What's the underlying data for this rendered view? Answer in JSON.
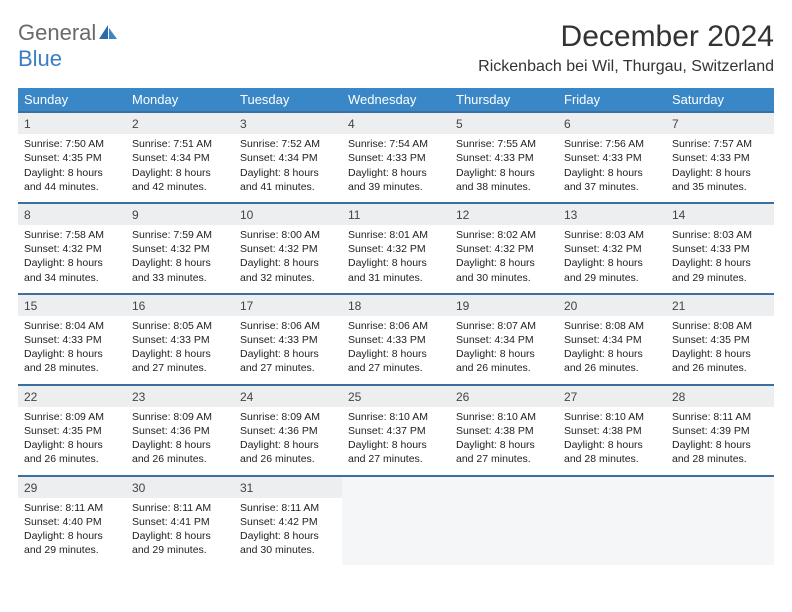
{
  "logo": {
    "text1": "General",
    "text2": "Blue"
  },
  "title": "December 2024",
  "location": "Rickenbach bei Wil, Thurgau, Switzerland",
  "colors": {
    "header_bg": "#3a87c7",
    "header_text": "#ffffff",
    "row_divider": "#3a6fa0",
    "daynum_bg": "#eceeef",
    "logo_gray": "#6a6a6a",
    "logo_blue": "#3a7fc4"
  },
  "weekdays": [
    "Sunday",
    "Monday",
    "Tuesday",
    "Wednesday",
    "Thursday",
    "Friday",
    "Saturday"
  ],
  "weeks": [
    [
      {
        "n": "1",
        "sr": "7:50 AM",
        "ss": "4:35 PM",
        "dl": "8 hours and 44 minutes."
      },
      {
        "n": "2",
        "sr": "7:51 AM",
        "ss": "4:34 PM",
        "dl": "8 hours and 42 minutes."
      },
      {
        "n": "3",
        "sr": "7:52 AM",
        "ss": "4:34 PM",
        "dl": "8 hours and 41 minutes."
      },
      {
        "n": "4",
        "sr": "7:54 AM",
        "ss": "4:33 PM",
        "dl": "8 hours and 39 minutes."
      },
      {
        "n": "5",
        "sr": "7:55 AM",
        "ss": "4:33 PM",
        "dl": "8 hours and 38 minutes."
      },
      {
        "n": "6",
        "sr": "7:56 AM",
        "ss": "4:33 PM",
        "dl": "8 hours and 37 minutes."
      },
      {
        "n": "7",
        "sr": "7:57 AM",
        "ss": "4:33 PM",
        "dl": "8 hours and 35 minutes."
      }
    ],
    [
      {
        "n": "8",
        "sr": "7:58 AM",
        "ss": "4:32 PM",
        "dl": "8 hours and 34 minutes."
      },
      {
        "n": "9",
        "sr": "7:59 AM",
        "ss": "4:32 PM",
        "dl": "8 hours and 33 minutes."
      },
      {
        "n": "10",
        "sr": "8:00 AM",
        "ss": "4:32 PM",
        "dl": "8 hours and 32 minutes."
      },
      {
        "n": "11",
        "sr": "8:01 AM",
        "ss": "4:32 PM",
        "dl": "8 hours and 31 minutes."
      },
      {
        "n": "12",
        "sr": "8:02 AM",
        "ss": "4:32 PM",
        "dl": "8 hours and 30 minutes."
      },
      {
        "n": "13",
        "sr": "8:03 AM",
        "ss": "4:32 PM",
        "dl": "8 hours and 29 minutes."
      },
      {
        "n": "14",
        "sr": "8:03 AM",
        "ss": "4:33 PM",
        "dl": "8 hours and 29 minutes."
      }
    ],
    [
      {
        "n": "15",
        "sr": "8:04 AM",
        "ss": "4:33 PM",
        "dl": "8 hours and 28 minutes."
      },
      {
        "n": "16",
        "sr": "8:05 AM",
        "ss": "4:33 PM",
        "dl": "8 hours and 27 minutes."
      },
      {
        "n": "17",
        "sr": "8:06 AM",
        "ss": "4:33 PM",
        "dl": "8 hours and 27 minutes."
      },
      {
        "n": "18",
        "sr": "8:06 AM",
        "ss": "4:33 PM",
        "dl": "8 hours and 27 minutes."
      },
      {
        "n": "19",
        "sr": "8:07 AM",
        "ss": "4:34 PM",
        "dl": "8 hours and 26 minutes."
      },
      {
        "n": "20",
        "sr": "8:08 AM",
        "ss": "4:34 PM",
        "dl": "8 hours and 26 minutes."
      },
      {
        "n": "21",
        "sr": "8:08 AM",
        "ss": "4:35 PM",
        "dl": "8 hours and 26 minutes."
      }
    ],
    [
      {
        "n": "22",
        "sr": "8:09 AM",
        "ss": "4:35 PM",
        "dl": "8 hours and 26 minutes."
      },
      {
        "n": "23",
        "sr": "8:09 AM",
        "ss": "4:36 PM",
        "dl": "8 hours and 26 minutes."
      },
      {
        "n": "24",
        "sr": "8:09 AM",
        "ss": "4:36 PM",
        "dl": "8 hours and 26 minutes."
      },
      {
        "n": "25",
        "sr": "8:10 AM",
        "ss": "4:37 PM",
        "dl": "8 hours and 27 minutes."
      },
      {
        "n": "26",
        "sr": "8:10 AM",
        "ss": "4:38 PM",
        "dl": "8 hours and 27 minutes."
      },
      {
        "n": "27",
        "sr": "8:10 AM",
        "ss": "4:38 PM",
        "dl": "8 hours and 28 minutes."
      },
      {
        "n": "28",
        "sr": "8:11 AM",
        "ss": "4:39 PM",
        "dl": "8 hours and 28 minutes."
      }
    ],
    [
      {
        "n": "29",
        "sr": "8:11 AM",
        "ss": "4:40 PM",
        "dl": "8 hours and 29 minutes."
      },
      {
        "n": "30",
        "sr": "8:11 AM",
        "ss": "4:41 PM",
        "dl": "8 hours and 29 minutes."
      },
      {
        "n": "31",
        "sr": "8:11 AM",
        "ss": "4:42 PM",
        "dl": "8 hours and 30 minutes."
      },
      null,
      null,
      null,
      null
    ]
  ],
  "labels": {
    "sunrise": "Sunrise: ",
    "sunset": "Sunset: ",
    "daylight": "Daylight: "
  }
}
